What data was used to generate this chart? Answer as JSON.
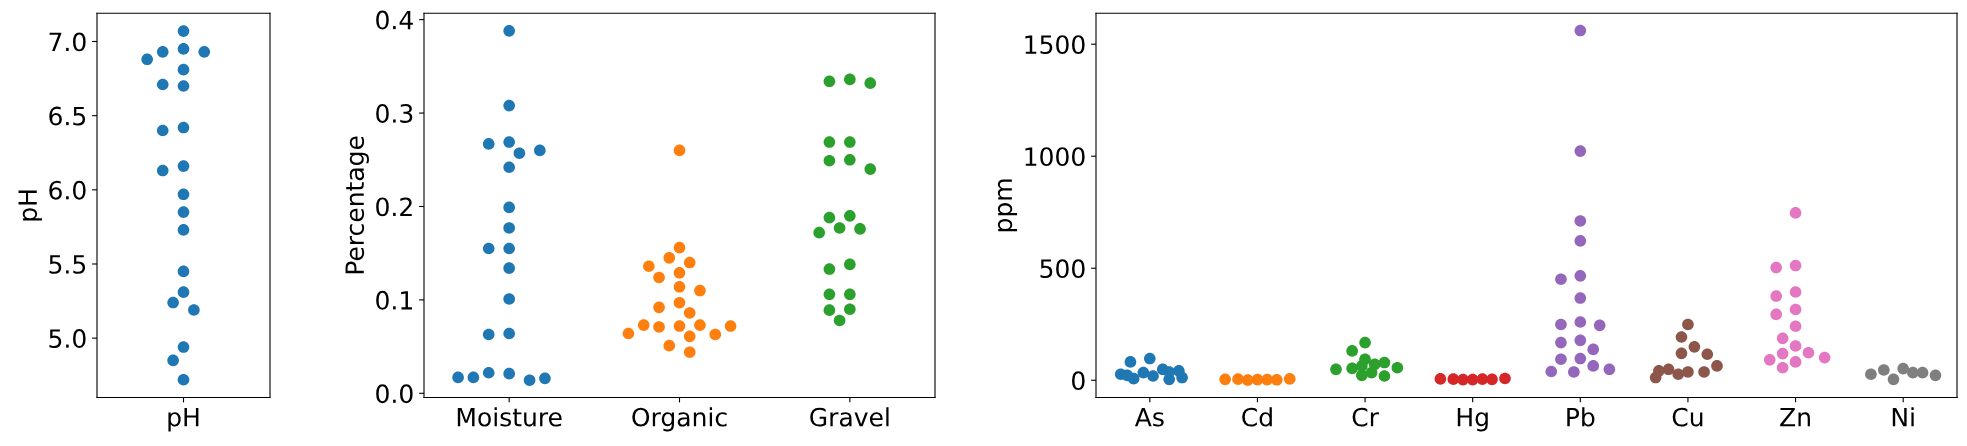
{
  "chart_data": [
    {
      "type": "scatter",
      "ylabel": "pH",
      "categories": [
        "pH"
      ],
      "ylim": [
        4.6,
        7.19
      ],
      "yticks": [
        {
          "value": 5,
          "label": "5.0"
        },
        {
          "value": 5.5,
          "label": "5.5"
        },
        {
          "value": 6,
          "label": "6.0"
        },
        {
          "value": 6.5,
          "label": "6.5"
        },
        {
          "value": 7,
          "label": "7.0"
        }
      ],
      "marker": "circle",
      "series": [
        {
          "color": "#1f77b4",
          "x": [
            "pH",
            "pH",
            "pH",
            "pH",
            "pH",
            "pH",
            "pH",
            "pH",
            "pH",
            "pH",
            "pH",
            "pH",
            "pH",
            "pH",
            "pH",
            "pH",
            "pH",
            "pH",
            "pH",
            "pH",
            "pH",
            "pH"
          ],
          "values": [
            7.07,
            6.95,
            6.93,
            6.93,
            6.88,
            6.81,
            6.7,
            6.71,
            6.42,
            6.4,
            6.16,
            6.13,
            5.97,
            5.85,
            5.73,
            5.45,
            5.31,
            5.24,
            5.19,
            4.94,
            4.85,
            4.72
          ]
        }
      ]
    },
    {
      "type": "scatter",
      "ylabel": "Percentage",
      "categories": [
        "Moisture",
        "Organic",
        "Gravel"
      ],
      "ylim": [
        -0.0045,
        0.4068
      ],
      "yticks": [
        {
          "value": 0,
          "label": "0.0"
        },
        {
          "value": 0.1,
          "label": "0.1"
        },
        {
          "value": 0.2,
          "label": "0.2"
        },
        {
          "value": 0.3,
          "label": "0.3"
        },
        {
          "value": 0.4,
          "label": "0.4"
        }
      ],
      "marker": "circle",
      "series": [
        {
          "color": "#1f77b4",
          "x": [
            "Moisture",
            "Moisture",
            "Moisture",
            "Moisture",
            "Moisture",
            "Moisture",
            "Moisture",
            "Moisture",
            "Moisture",
            "Moisture",
            "Moisture",
            "Moisture",
            "Moisture",
            "Moisture",
            "Moisture",
            "Moisture",
            "Moisture",
            "Moisture",
            "Moisture",
            "Moisture",
            "Moisture"
          ],
          "values": [
            0.388,
            0.308,
            0.269,
            0.267,
            0.257,
            0.26,
            0.242,
            0.199,
            0.177,
            0.155,
            0.155,
            0.134,
            0.101,
            0.064,
            0.063,
            0.021,
            0.022,
            0.014,
            0.017,
            0.016,
            0.017
          ]
        },
        {
          "color": "#ff7f0e",
          "x": [
            "Organic",
            "Organic",
            "Organic",
            "Organic",
            "Organic",
            "Organic",
            "Organic",
            "Organic",
            "Organic",
            "Organic",
            "Organic",
            "Organic",
            "Organic",
            "Organic",
            "Organic",
            "Organic",
            "Organic",
            "Organic",
            "Organic",
            "Organic",
            "Organic",
            "Organic"
          ],
          "values": [
            0.26,
            0.156,
            0.145,
            0.14,
            0.136,
            0.129,
            0.124,
            0.114,
            0.11,
            0.097,
            0.092,
            0.086,
            0.072,
            0.071,
            0.073,
            0.073,
            0.063,
            0.064,
            0.061,
            0.051,
            0.044,
            0.072
          ]
        },
        {
          "color": "#2ca02c",
          "x": [
            "Gravel",
            "Gravel",
            "Gravel",
            "Gravel",
            "Gravel",
            "Gravel",
            "Gravel",
            "Gravel",
            "Gravel",
            "Gravel",
            "Gravel",
            "Gravel",
            "Gravel",
            "Gravel",
            "Gravel",
            "Gravel",
            "Gravel",
            "Gravel",
            "Gravel",
            "Gravel"
          ],
          "values": [
            0.336,
            0.334,
            0.332,
            0.269,
            0.269,
            0.25,
            0.249,
            0.24,
            0.19,
            0.188,
            0.177,
            0.176,
            0.172,
            0.138,
            0.133,
            0.106,
            0.106,
            0.09,
            0.089,
            0.078
          ]
        }
      ]
    },
    {
      "type": "scatter",
      "ylabel": "ppm",
      "categories": [
        "As",
        "Cd",
        "Cr",
        "Hg",
        "Pb",
        "Cu",
        "Zn",
        "Ni"
      ],
      "ylim": [
        -77,
        1638
      ],
      "yticks": [
        0,
        500,
        1000,
        1500
      ],
      "marker": "circle",
      "series": [
        {
          "color": "#1f77b4",
          "x": [
            "As",
            "As",
            "As",
            "As",
            "As",
            "As",
            "As",
            "As",
            "As",
            "As",
            "As",
            "As"
          ],
          "values": [
            97,
            82,
            49,
            42,
            34,
            27,
            19,
            4,
            7,
            12,
            22,
            37
          ]
        },
        {
          "color": "#ff7f0e",
          "x": [
            "Cd",
            "Cd",
            "Cd",
            "Cd",
            "Cd",
            "Cd",
            "Cd"
          ],
          "values": [
            3,
            5,
            2,
            6,
            4,
            1,
            3
          ]
        },
        {
          "color": "#2ca02c",
          "x": [
            "Cr",
            "Cr",
            "Cr",
            "Cr",
            "Cr",
            "Cr",
            "Cr",
            "Cr",
            "Cr",
            "Cr",
            "Cr",
            "Cr"
          ],
          "values": [
            168,
            131,
            94,
            79,
            53,
            49,
            56,
            34,
            19,
            22,
            64,
            71
          ]
        },
        {
          "color": "#d62728",
          "x": [
            "Hg",
            "Hg",
            "Hg",
            "Hg",
            "Hg",
            "Hg",
            "Hg"
          ],
          "values": [
            3,
            5,
            4,
            8,
            6,
            3,
            5
          ]
        },
        {
          "color": "#9467bd",
          "x": [
            "Pb",
            "Pb",
            "Pb",
            "Pb",
            "Pb",
            "Pb",
            "Pb",
            "Pb",
            "Pb",
            "Pb",
            "Pb",
            "Pb",
            "Pb",
            "Pb",
            "Pb",
            "Pb",
            "Pb",
            "Pb",
            "Pb"
          ],
          "values": [
            1561,
            1023,
            711,
            622,
            466,
            451,
            367,
            260,
            249,
            245,
            178,
            168,
            138,
            97,
            94,
            64,
            49,
            37,
            39
          ]
        },
        {
          "color": "#8c564b",
          "x": [
            "Cu",
            "Cu",
            "Cu",
            "Cu",
            "Cu",
            "Cu",
            "Cu",
            "Cu",
            "Cu",
            "Cu",
            "Cu",
            "Cu"
          ],
          "values": [
            249,
            193,
            149,
            120,
            116,
            37,
            49,
            64,
            37,
            12,
            27,
            42
          ]
        },
        {
          "color": "#e377c2",
          "x": [
            "Zn",
            "Zn",
            "Zn",
            "Zn",
            "Zn",
            "Zn",
            "Zn",
            "Zn",
            "Zn",
            "Zn",
            "Zn",
            "Zn",
            "Zn",
            "Zn",
            "Zn",
            "Zn"
          ],
          "values": [
            747,
            512,
            503,
            394,
            376,
            316,
            294,
            241,
            187,
            153,
            119,
            123,
            91,
            82,
            56,
            101
          ]
        },
        {
          "color": "#7f7f7f",
          "x": [
            "Ni",
            "Ni",
            "Ni",
            "Ni",
            "Ni",
            "Ni",
            "Ni"
          ],
          "values": [
            52,
            46,
            34,
            27,
            22,
            4,
            34
          ]
        }
      ]
    }
  ]
}
